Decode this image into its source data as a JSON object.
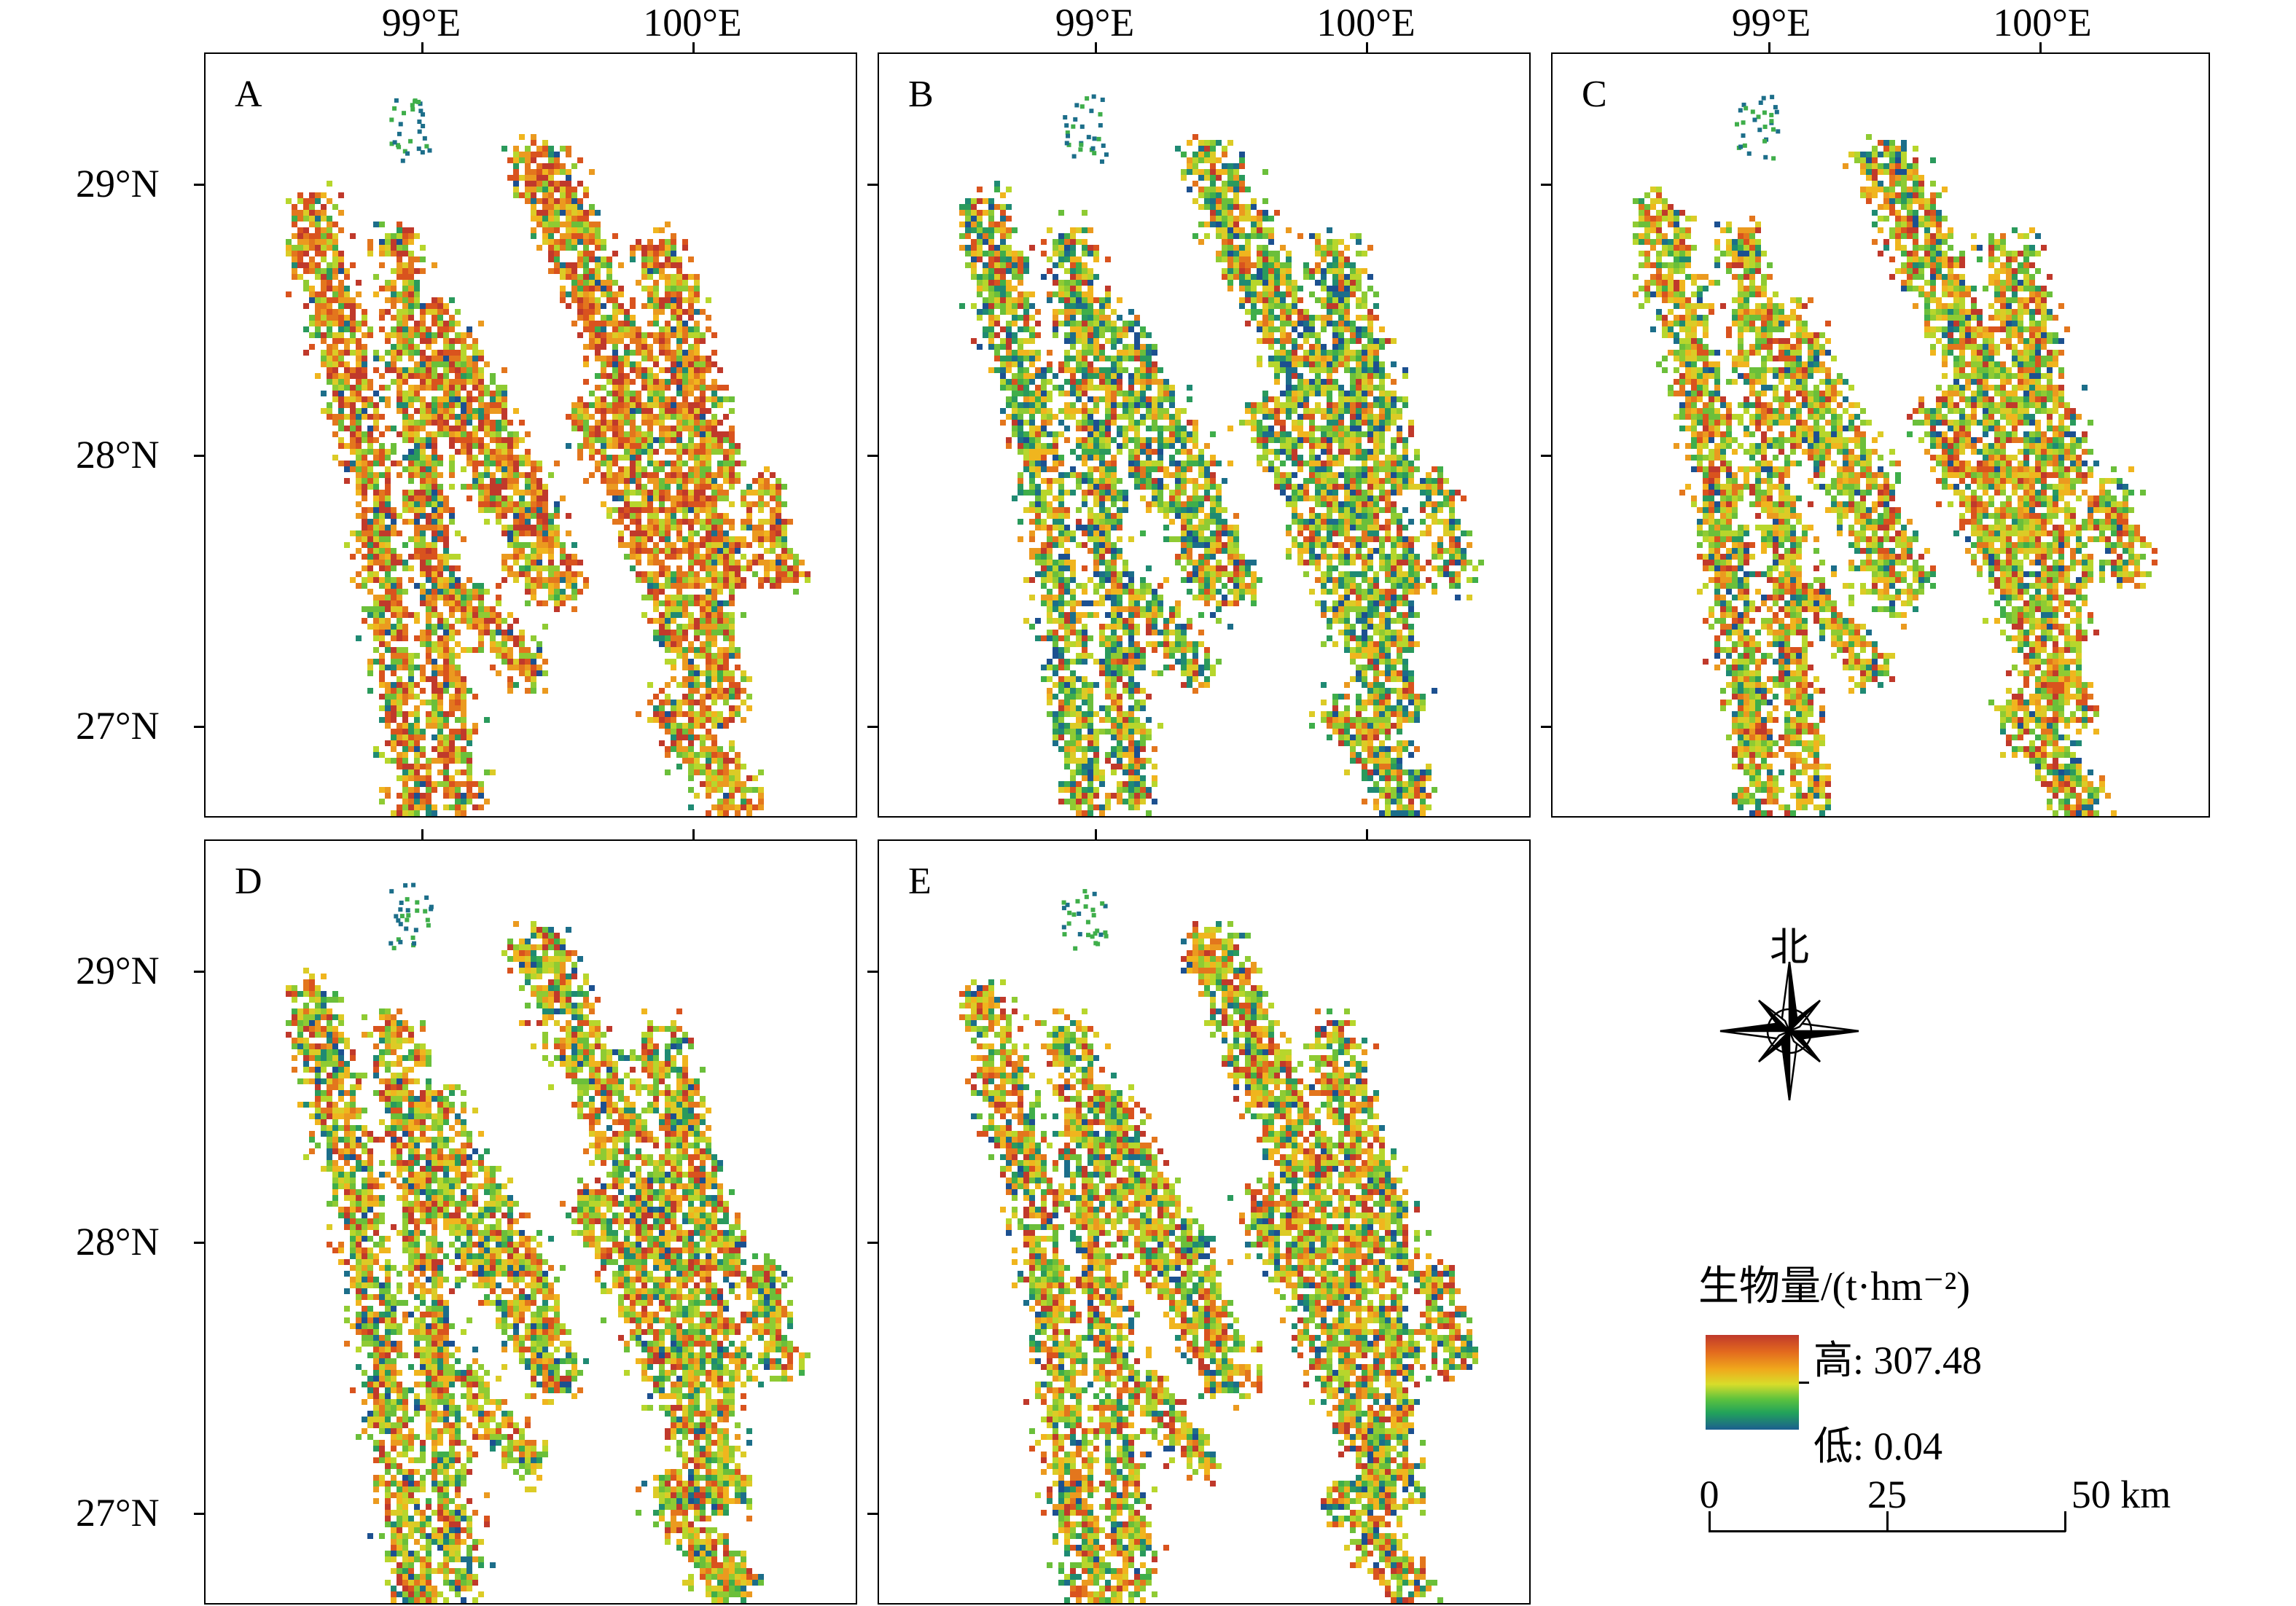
{
  "panels": [
    {
      "label": "A",
      "mix": {
        "hot": 0.55,
        "mid": 0.35,
        "cool": 0.1
      }
    },
    {
      "label": "B",
      "mix": {
        "hot": 0.22,
        "mid": 0.48,
        "cool": 0.3
      }
    },
    {
      "label": "C",
      "mix": {
        "hot": 0.3,
        "mid": 0.55,
        "cool": 0.15
      }
    },
    {
      "label": "D",
      "mix": {
        "hot": 0.3,
        "mid": 0.52,
        "cool": 0.18
      }
    },
    {
      "label": "E",
      "mix": {
        "hot": 0.32,
        "mid": 0.5,
        "cool": 0.18
      }
    }
  ],
  "axes": {
    "longitude_labels": [
      "99°E",
      "100°E"
    ],
    "latitude_labels": [
      "29°N",
      "28°N",
      "27°N"
    ]
  },
  "legend": {
    "title": "生物量/(t·hm⁻²)",
    "high_label": "高: 307.48",
    "low_label": "低: 0.04",
    "ramp_colors": [
      "#c0392b",
      "#e36a1e",
      "#f0a81c",
      "#d8dd2a",
      "#5cc23e",
      "#22a35a",
      "#1c5f8f"
    ]
  },
  "compass": {
    "north_label": "北"
  },
  "scale_bar": {
    "ticks": [
      "0",
      "25",
      "50 km"
    ]
  }
}
